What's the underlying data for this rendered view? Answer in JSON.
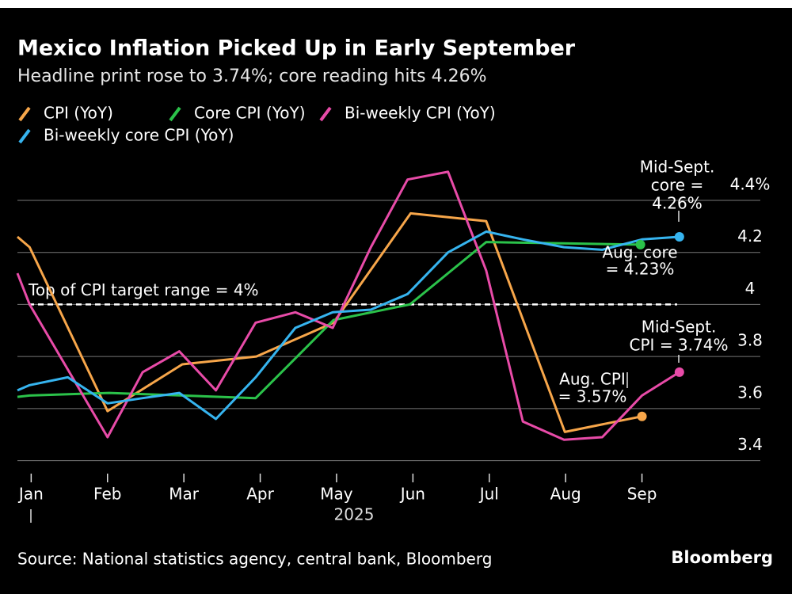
{
  "chart_data": {
    "type": "line",
    "title": "Mexico Inflation Picked Up in Early September",
    "subtitle": "Headline print rose to 3.74%; core reading hits 4.26%",
    "x_label": "2025",
    "source": "Source: National statistics agency, central bank, Bloomberg",
    "brand": "Bloomberg",
    "xlim": [
      0.82,
      10.55
    ],
    "xticks": [
      {
        "value": 1,
        "label": "Jan"
      },
      {
        "value": 2,
        "label": "Feb"
      },
      {
        "value": 3,
        "label": "Mar"
      },
      {
        "value": 4,
        "label": "Apr"
      },
      {
        "value": 5,
        "label": "May"
      },
      {
        "value": 6,
        "label": "Jun"
      },
      {
        "value": 7,
        "label": "Jul"
      },
      {
        "value": 8,
        "label": "Aug"
      },
      {
        "value": 9,
        "label": "Sep"
      }
    ],
    "ylim": [
      3.35,
      4.54
    ],
    "yticks": [
      3.4,
      3.6,
      3.8,
      4.0,
      {
        "value": 4.2,
        "label": "4.2"
      },
      {
        "value": 4.4,
        "label": "4.4%"
      }
    ],
    "grid": true,
    "reference_line": {
      "value": 4,
      "label": "Top of CPI target range = 4%"
    },
    "series": [
      {
        "name": "CPI (YoY)",
        "color": "#f7a64a",
        "x": [
          0.82,
          0.98,
          2.0,
          2.98,
          3.95,
          4.96,
          5.97,
          6.96,
          7.99,
          9.0
        ],
        "values": [
          4.26,
          4.22,
          3.59,
          3.77,
          3.8,
          3.93,
          4.35,
          4.32,
          3.51,
          3.57
        ]
      },
      {
        "name": "Core CPI (YoY)",
        "color": "#2bc24a",
        "x": [
          0.82,
          0.98,
          2.02,
          2.98,
          3.94,
          4.96,
          5.96,
          6.96,
          7.98,
          8.98
        ],
        "values": [
          3.645,
          3.65,
          3.66,
          3.65,
          3.64,
          3.94,
          4.0,
          4.24,
          4.235,
          4.23
        ]
      },
      {
        "name": "Bi-weekly CPI (YoY)",
        "color": "#e84ba8",
        "x": [
          0.82,
          0.98,
          2.0,
          2.46,
          2.94,
          3.42,
          3.94,
          4.46,
          4.95,
          5.45,
          5.93,
          6.46,
          6.96,
          7.44,
          7.98,
          8.48,
          9.0,
          9.49
        ],
        "values": [
          4.12,
          4.0,
          3.49,
          3.74,
          3.82,
          3.67,
          3.93,
          3.97,
          3.91,
          4.22,
          4.48,
          4.51,
          4.13,
          3.55,
          3.48,
          3.49,
          3.65,
          3.74
        ]
      },
      {
        "name": "Bi-weekly core CPI (YoY)",
        "color": "#36b4ef",
        "x": [
          0.82,
          0.98,
          1.48,
          2.0,
          2.46,
          2.94,
          3.42,
          3.94,
          4.46,
          4.95,
          5.45,
          5.93,
          6.46,
          6.96,
          7.44,
          7.98,
          8.48,
          9.0,
          9.49
        ],
        "values": [
          3.67,
          3.69,
          3.72,
          3.62,
          3.64,
          3.66,
          3.56,
          3.72,
          3.91,
          3.97,
          3.98,
          4.04,
          4.2,
          4.28,
          4.25,
          4.22,
          4.21,
          4.25,
          4.26
        ]
      }
    ],
    "annotations": [
      {
        "lines": [
          "Mid-Sept.",
          "core =",
          "4.26%"
        ]
      },
      {
        "lines": [
          "Aug. core",
          "= 4.23%"
        ]
      },
      {
        "lines": [
          "Mid-Sept.",
          "CPI = 3.74%"
        ]
      },
      {
        "lines": [
          "Aug. CPI",
          "= 3.57%"
        ]
      }
    ]
  }
}
